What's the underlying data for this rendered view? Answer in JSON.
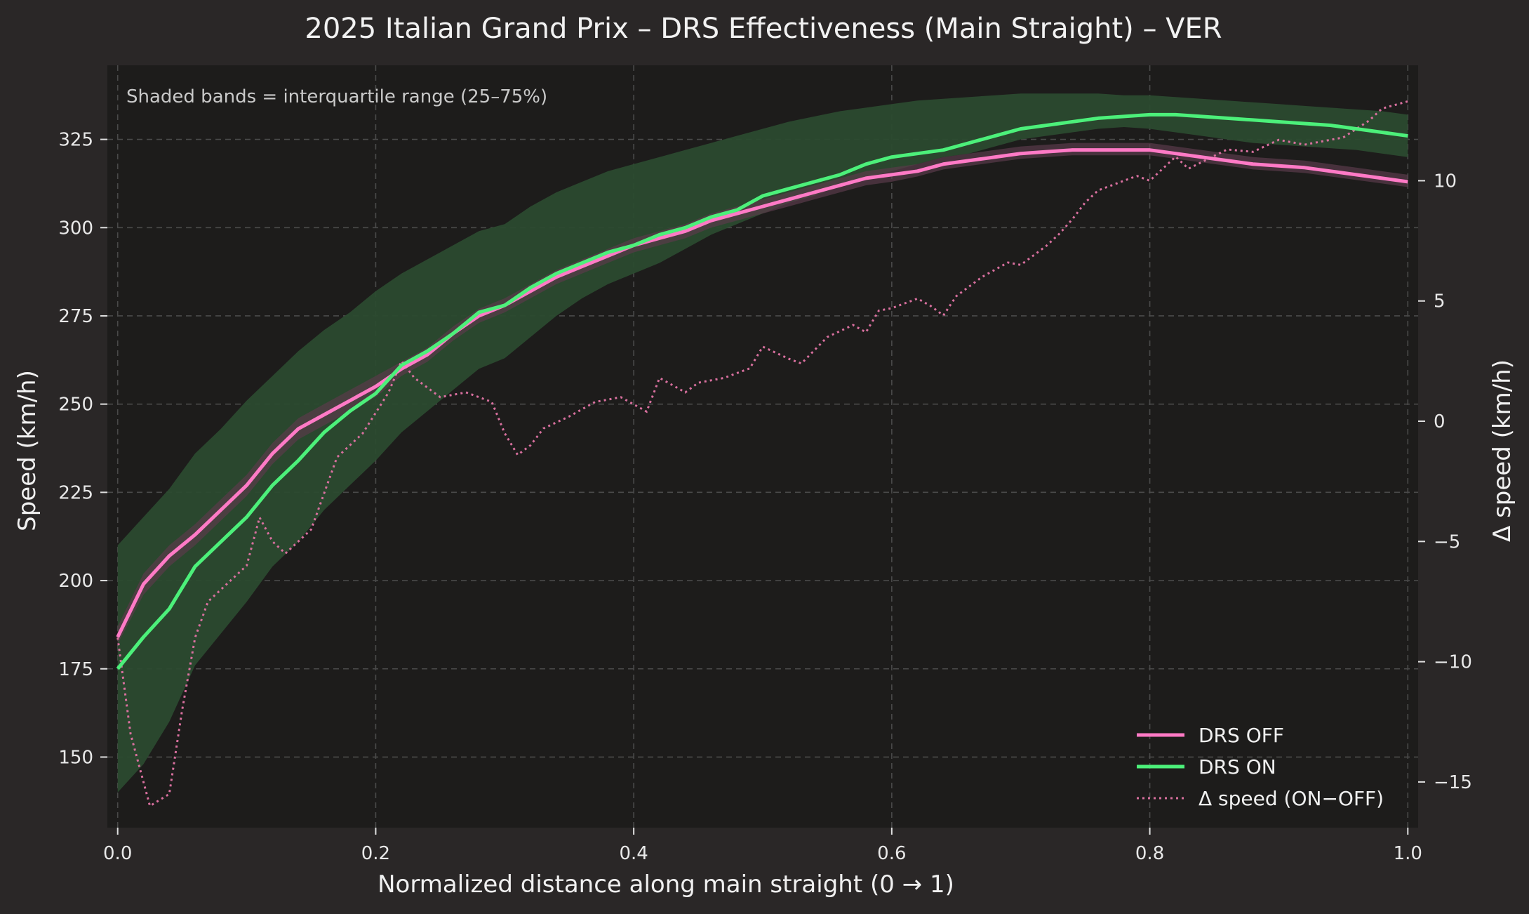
{
  "colors": {
    "background": "#2a2726",
    "plot_background": "#1d1c1b",
    "drs_off": "#ff7ac6",
    "drs_on": "#4cf07a",
    "drs_on_band": "#2b4a2f",
    "drs_off_band": "#5a3a4a",
    "delta": "#d9709f"
  },
  "chart_data": {
    "type": "line",
    "title": "2025 Italian Grand Prix – DRS Effectiveness (Main Straight) – VER",
    "xlabel": "Normalized distance along main straight (0 → 1)",
    "ylabel": "Speed (km/h)",
    "y2label": "Δ speed (km/h)",
    "annotation": "Shaded bands = interquartile range (25–75%)",
    "xlim": [
      -0.008,
      1.008
    ],
    "ylim": [
      130,
      346
    ],
    "y2lim": [
      -16.9,
      14.8
    ],
    "x_ticks": [
      0.0,
      0.2,
      0.4,
      0.6,
      0.8,
      1.0
    ],
    "x_tick_labels": [
      "0.0",
      "0.2",
      "0.4",
      "0.6",
      "0.8",
      "1.0"
    ],
    "y_ticks": [
      150,
      175,
      200,
      225,
      250,
      275,
      300,
      325
    ],
    "y_tick_labels": [
      "150",
      "175",
      "200",
      "225",
      "250",
      "275",
      "300",
      "325"
    ],
    "y2_ticks": [
      -15,
      -10,
      -5,
      0,
      5,
      10
    ],
    "y2_tick_labels": [
      "−15",
      "−10",
      "−5",
      "0",
      "5",
      "10"
    ],
    "grid": true,
    "legend_position": "bottom-right",
    "x": [
      0.0,
      0.02,
      0.04,
      0.06,
      0.08,
      0.1,
      0.12,
      0.14,
      0.16,
      0.18,
      0.2,
      0.22,
      0.24,
      0.26,
      0.28,
      0.3,
      0.32,
      0.34,
      0.36,
      0.38,
      0.4,
      0.42,
      0.44,
      0.46,
      0.48,
      0.5,
      0.52,
      0.54,
      0.56,
      0.58,
      0.6,
      0.62,
      0.64,
      0.66,
      0.68,
      0.7,
      0.72,
      0.74,
      0.76,
      0.78,
      0.8,
      0.82,
      0.84,
      0.86,
      0.88,
      0.9,
      0.92,
      0.94,
      0.96,
      0.98,
      1.0
    ],
    "series": [
      {
        "name": "DRS OFF",
        "values": [
          184,
          199,
          207,
          213,
          220,
          227,
          236,
          243,
          247,
          251,
          255,
          260,
          264,
          270,
          275,
          278,
          282,
          286,
          289,
          292,
          295,
          297,
          299,
          302,
          304,
          306,
          308,
          310,
          312,
          314,
          315,
          316,
          318,
          319,
          320,
          321,
          321.5,
          322,
          322,
          322,
          322,
          321,
          320,
          319,
          318,
          317.5,
          317,
          316,
          315,
          314,
          313
        ],
        "q25": [
          182,
          196,
          204,
          210,
          217,
          224,
          233,
          240,
          244,
          248,
          252,
          258,
          262,
          268,
          273,
          276,
          280,
          284,
          287,
          290,
          293,
          295,
          297,
          300,
          302,
          304,
          306,
          308,
          310,
          312,
          313,
          314.5,
          316.5,
          317.5,
          318.5,
          319.5,
          320,
          320.5,
          320.5,
          320.5,
          320.5,
          319.5,
          318.5,
          317.5,
          316.5,
          316,
          315.5,
          314.5,
          313.5,
          312.5,
          311.5
        ],
        "q75": [
          187,
          202,
          210,
          216,
          223,
          230,
          239,
          246,
          250,
          254,
          258,
          262,
          266,
          272,
          277,
          280,
          284,
          288,
          291,
          294,
          297,
          299,
          301,
          304,
          306,
          308,
          310,
          312,
          314,
          316,
          317,
          318,
          320,
          321,
          322,
          323,
          323.5,
          324,
          324,
          324,
          324,
          323,
          322,
          321,
          320,
          319.5,
          319,
          318,
          317,
          316,
          315
        ]
      },
      {
        "name": "DRS ON",
        "values": [
          175,
          184,
          192,
          204,
          211,
          218,
          227,
          234,
          242,
          248,
          253,
          261,
          265,
          270,
          276,
          278,
          283,
          287,
          290,
          293,
          295,
          298,
          300,
          303,
          305,
          309,
          311,
          313,
          315,
          318,
          320,
          321,
          322,
          324,
          326,
          328,
          329,
          330,
          331,
          331.5,
          332,
          332,
          331.5,
          331,
          330.5,
          330,
          329.5,
          329,
          328,
          327,
          326
        ],
        "q25": [
          140,
          148,
          160,
          176,
          185,
          194,
          204,
          211,
          220,
          227,
          234,
          242,
          248,
          254,
          260,
          263,
          269,
          275,
          280,
          284,
          287,
          290,
          294,
          298,
          301,
          304,
          307,
          309,
          312,
          314,
          316,
          318,
          320,
          321,
          323,
          325,
          326,
          327,
          328,
          328.5,
          328,
          327,
          326,
          325,
          324,
          323.5,
          323,
          322.5,
          322,
          321,
          320
        ],
        "q75": [
          210,
          218,
          226,
          236,
          243,
          251,
          258,
          265,
          271,
          276,
          282,
          287,
          291,
          295,
          299,
          301,
          306,
          310,
          313,
          316,
          318,
          320,
          322,
          324,
          326,
          328,
          330,
          331.5,
          333,
          334,
          335,
          336,
          336.5,
          337,
          337.5,
          338,
          338,
          338,
          338,
          337.5,
          337.5,
          337,
          336.5,
          336,
          335.5,
          335,
          334.5,
          334,
          333.5,
          333,
          332
        ]
      },
      {
        "name": "Δ speed (ON−OFF)",
        "axis": "right",
        "x": [
          0.0,
          0.01,
          0.02,
          0.025,
          0.04,
          0.05,
          0.06,
          0.07,
          0.08,
          0.1,
          0.11,
          0.12,
          0.13,
          0.15,
          0.17,
          0.19,
          0.21,
          0.22,
          0.23,
          0.25,
          0.27,
          0.29,
          0.3,
          0.31,
          0.32,
          0.33,
          0.35,
          0.37,
          0.39,
          0.41,
          0.42,
          0.43,
          0.44,
          0.45,
          0.47,
          0.49,
          0.5,
          0.52,
          0.53,
          0.55,
          0.57,
          0.58,
          0.59,
          0.6,
          0.62,
          0.63,
          0.64,
          0.65,
          0.67,
          0.69,
          0.7,
          0.72,
          0.73,
          0.74,
          0.75,
          0.76,
          0.78,
          0.79,
          0.8,
          0.82,
          0.83,
          0.86,
          0.88,
          0.9,
          0.92,
          0.95,
          0.97,
          0.98,
          1.0
        ],
        "values": [
          -9,
          -13,
          -15,
          -16,
          -15.5,
          -12,
          -9,
          -7.5,
          -7,
          -6,
          -4,
          -5,
          -5.5,
          -4.5,
          -1.5,
          -0.5,
          1.2,
          2.5,
          1.8,
          1,
          1.2,
          0.8,
          -0.5,
          -1.4,
          -1,
          -0.3,
          0.2,
          0.8,
          1,
          0.4,
          1.8,
          1.5,
          1.2,
          1.6,
          1.8,
          2.2,
          3.1,
          2.6,
          2.4,
          3.5,
          4,
          3.7,
          4.6,
          4.7,
          5.1,
          4.8,
          4.4,
          5.2,
          6,
          6.6,
          6.5,
          7.3,
          7.8,
          8.4,
          9.1,
          9.6,
          10,
          10.2,
          10,
          11,
          10.5,
          11.3,
          11.2,
          11.7,
          11.5,
          11.8,
          12.5,
          13,
          13.3
        ]
      }
    ]
  }
}
